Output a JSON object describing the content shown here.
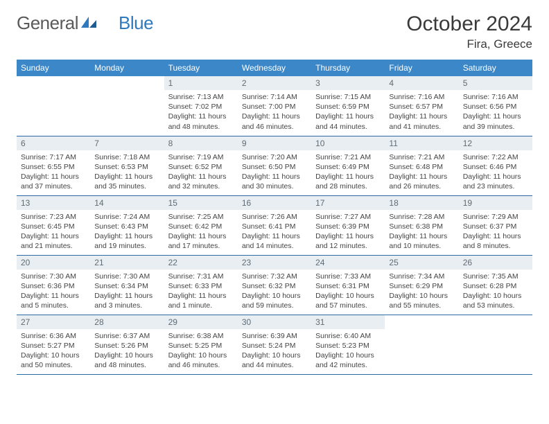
{
  "brand": {
    "part1": "General",
    "part2": "Blue"
  },
  "title": "October 2024",
  "location": "Fira, Greece",
  "colors": {
    "header_bg": "#3b87c8",
    "header_text": "#ffffff",
    "daynum_bg": "#e9eef2",
    "daynum_text": "#5f6b74",
    "cell_border": "#2b6aa3",
    "body_text": "#444444",
    "brand_gray": "#5a5a5a",
    "brand_blue": "#2f7abf"
  },
  "weekdays": [
    "Sunday",
    "Monday",
    "Tuesday",
    "Wednesday",
    "Thursday",
    "Friday",
    "Saturday"
  ],
  "leading_blanks": 2,
  "days": [
    {
      "n": 1,
      "sunrise": "7:13 AM",
      "sunset": "7:02 PM",
      "daylight": "11 hours and 48 minutes."
    },
    {
      "n": 2,
      "sunrise": "7:14 AM",
      "sunset": "7:00 PM",
      "daylight": "11 hours and 46 minutes."
    },
    {
      "n": 3,
      "sunrise": "7:15 AM",
      "sunset": "6:59 PM",
      "daylight": "11 hours and 44 minutes."
    },
    {
      "n": 4,
      "sunrise": "7:16 AM",
      "sunset": "6:57 PM",
      "daylight": "11 hours and 41 minutes."
    },
    {
      "n": 5,
      "sunrise": "7:16 AM",
      "sunset": "6:56 PM",
      "daylight": "11 hours and 39 minutes."
    },
    {
      "n": 6,
      "sunrise": "7:17 AM",
      "sunset": "6:55 PM",
      "daylight": "11 hours and 37 minutes."
    },
    {
      "n": 7,
      "sunrise": "7:18 AM",
      "sunset": "6:53 PM",
      "daylight": "11 hours and 35 minutes."
    },
    {
      "n": 8,
      "sunrise": "7:19 AM",
      "sunset": "6:52 PM",
      "daylight": "11 hours and 32 minutes."
    },
    {
      "n": 9,
      "sunrise": "7:20 AM",
      "sunset": "6:50 PM",
      "daylight": "11 hours and 30 minutes."
    },
    {
      "n": 10,
      "sunrise": "7:21 AM",
      "sunset": "6:49 PM",
      "daylight": "11 hours and 28 minutes."
    },
    {
      "n": 11,
      "sunrise": "7:21 AM",
      "sunset": "6:48 PM",
      "daylight": "11 hours and 26 minutes."
    },
    {
      "n": 12,
      "sunrise": "7:22 AM",
      "sunset": "6:46 PM",
      "daylight": "11 hours and 23 minutes."
    },
    {
      "n": 13,
      "sunrise": "7:23 AM",
      "sunset": "6:45 PM",
      "daylight": "11 hours and 21 minutes."
    },
    {
      "n": 14,
      "sunrise": "7:24 AM",
      "sunset": "6:43 PM",
      "daylight": "11 hours and 19 minutes."
    },
    {
      "n": 15,
      "sunrise": "7:25 AM",
      "sunset": "6:42 PM",
      "daylight": "11 hours and 17 minutes."
    },
    {
      "n": 16,
      "sunrise": "7:26 AM",
      "sunset": "6:41 PM",
      "daylight": "11 hours and 14 minutes."
    },
    {
      "n": 17,
      "sunrise": "7:27 AM",
      "sunset": "6:39 PM",
      "daylight": "11 hours and 12 minutes."
    },
    {
      "n": 18,
      "sunrise": "7:28 AM",
      "sunset": "6:38 PM",
      "daylight": "11 hours and 10 minutes."
    },
    {
      "n": 19,
      "sunrise": "7:29 AM",
      "sunset": "6:37 PM",
      "daylight": "11 hours and 8 minutes."
    },
    {
      "n": 20,
      "sunrise": "7:30 AM",
      "sunset": "6:36 PM",
      "daylight": "11 hours and 5 minutes."
    },
    {
      "n": 21,
      "sunrise": "7:30 AM",
      "sunset": "6:34 PM",
      "daylight": "11 hours and 3 minutes."
    },
    {
      "n": 22,
      "sunrise": "7:31 AM",
      "sunset": "6:33 PM",
      "daylight": "11 hours and 1 minute."
    },
    {
      "n": 23,
      "sunrise": "7:32 AM",
      "sunset": "6:32 PM",
      "daylight": "10 hours and 59 minutes."
    },
    {
      "n": 24,
      "sunrise": "7:33 AM",
      "sunset": "6:31 PM",
      "daylight": "10 hours and 57 minutes."
    },
    {
      "n": 25,
      "sunrise": "7:34 AM",
      "sunset": "6:29 PM",
      "daylight": "10 hours and 55 minutes."
    },
    {
      "n": 26,
      "sunrise": "7:35 AM",
      "sunset": "6:28 PM",
      "daylight": "10 hours and 53 minutes."
    },
    {
      "n": 27,
      "sunrise": "6:36 AM",
      "sunset": "5:27 PM",
      "daylight": "10 hours and 50 minutes."
    },
    {
      "n": 28,
      "sunrise": "6:37 AM",
      "sunset": "5:26 PM",
      "daylight": "10 hours and 48 minutes."
    },
    {
      "n": 29,
      "sunrise": "6:38 AM",
      "sunset": "5:25 PM",
      "daylight": "10 hours and 46 minutes."
    },
    {
      "n": 30,
      "sunrise": "6:39 AM",
      "sunset": "5:24 PM",
      "daylight": "10 hours and 44 minutes."
    },
    {
      "n": 31,
      "sunrise": "6:40 AM",
      "sunset": "5:23 PM",
      "daylight": "10 hours and 42 minutes."
    }
  ],
  "labels": {
    "sunrise": "Sunrise:",
    "sunset": "Sunset:",
    "daylight": "Daylight:"
  }
}
